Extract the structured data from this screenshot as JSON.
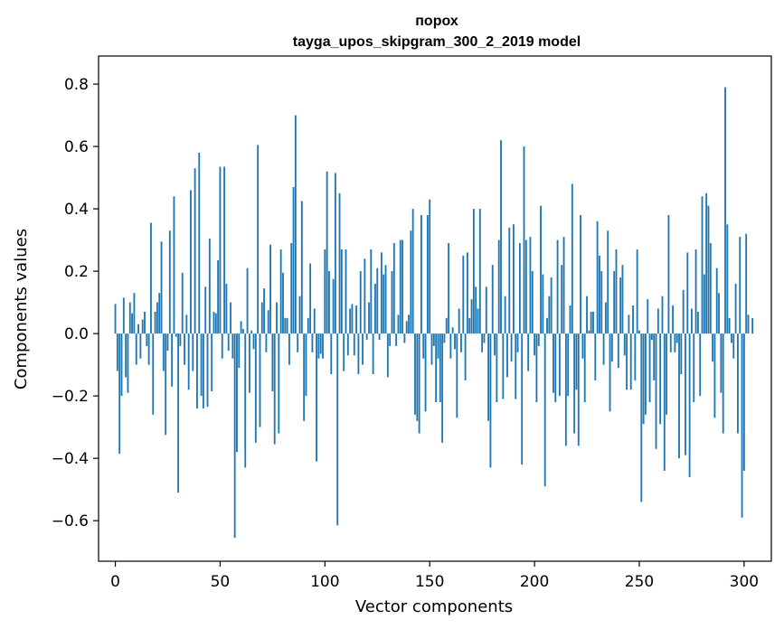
{
  "chart_data": {
    "type": "bar",
    "title": "порох",
    "subtitle": "tayga_upos_skipgram_300_2_2019 model",
    "xlabel": "Vector components",
    "ylabel": "Components values",
    "xlim": [
      -8,
      313
    ],
    "ylim": [
      -0.73,
      0.89
    ],
    "x_ticks": [
      0,
      50,
      100,
      150,
      200,
      250,
      300
    ],
    "x_tick_labels": [
      "0",
      "50",
      "100",
      "150",
      "200",
      "250",
      "300"
    ],
    "y_ticks": [
      -0.6,
      -0.4,
      -0.2,
      0.0,
      0.2,
      0.4,
      0.6,
      0.8
    ],
    "y_tick_labels": [
      "−0.6",
      "−0.4",
      "−0.2",
      "0.0",
      "0.2",
      "0.4",
      "0.6",
      "0.8"
    ],
    "bar_color": "#1f77b4",
    "series": [
      {
        "name": "components",
        "values": [
          0.095,
          -0.12,
          -0.385,
          -0.2,
          0.115,
          -0.14,
          -0.19,
          0.1,
          0.065,
          0.13,
          -0.1,
          0.03,
          -0.08,
          0.045,
          0.07,
          -0.04,
          -0.1,
          0.355,
          -0.26,
          0.07,
          0.1,
          0.13,
          0.295,
          -0.12,
          -0.325,
          -0.055,
          0.33,
          -0.17,
          0.44,
          -0.01,
          -0.51,
          -0.04,
          0.195,
          -0.1,
          0.06,
          -0.18,
          0.46,
          -0.12,
          0.53,
          -0.24,
          0.58,
          -0.2,
          -0.24,
          0.15,
          -0.235,
          0.305,
          -0.185,
          0.07,
          0.065,
          0.235,
          0.535,
          -0.08,
          0.535,
          0.16,
          -0.055,
          0.1,
          -0.08,
          -0.655,
          -0.38,
          -0.11,
          0.04,
          0.015,
          -0.43,
          0.21,
          -0.19,
          0.01,
          -0.05,
          -0.35,
          0.605,
          -0.3,
          0.1,
          0.145,
          -0.06,
          0.075,
          0.285,
          -0.185,
          -0.355,
          0.1,
          -0.32,
          0.27,
          0.195,
          0.05,
          0.05,
          -0.1,
          0.29,
          0.47,
          0.7,
          -0.06,
          0.12,
          0.425,
          -0.28,
          -0.2,
          0.05,
          0.225,
          -0.06,
          0.08,
          -0.41,
          -0.08,
          -0.065,
          -0.08,
          0.27,
          0.52,
          0.2,
          -0.13,
          0.175,
          0.515,
          -0.615,
          0.45,
          0.27,
          -0.12,
          0.27,
          -0.07,
          0.08,
          0.095,
          -0.07,
          0.09,
          -0.13,
          0.2,
          -0.1,
          0.24,
          -0.02,
          0.1,
          0.27,
          -0.13,
          0.16,
          0.21,
          -0.02,
          0.26,
          0.19,
          0.22,
          -0.14,
          -0.04,
          0.2,
          0.29,
          -0.04,
          0.06,
          0.3,
          0.3,
          -0.03,
          0.04,
          0.06,
          0.33,
          0.4,
          -0.26,
          -0.28,
          -0.32,
          0.38,
          -0.08,
          -0.25,
          0.38,
          0.43,
          -0.1,
          -0.04,
          -0.22,
          -0.08,
          -0.22,
          -0.35,
          -0.03,
          0.05,
          0.29,
          -0.08,
          0.02,
          -0.05,
          -0.27,
          0.08,
          -0.06,
          0.25,
          -0.15,
          0.26,
          0.05,
          0.11,
          0.4,
          0.15,
          0.08,
          0.4,
          -0.06,
          -0.03,
          0.15,
          -0.28,
          -0.43,
          0.22,
          -0.07,
          -0.22,
          0.3,
          0.62,
          -0.21,
          0.12,
          -0.14,
          0.34,
          -0.09,
          0.35,
          -0.21,
          -0.06,
          0.29,
          -0.42,
          0.6,
          0.3,
          -0.12,
          0.31,
          0.2,
          -0.07,
          -0.22,
          -0.04,
          0.41,
          0.19,
          -0.49,
          0.05,
          0.12,
          0.18,
          -0.19,
          -0.22,
          0.3,
          -0.2,
          0.22,
          0.31,
          -0.36,
          -0.2,
          0.09,
          0.48,
          -0.32,
          -0.18,
          -0.36,
          0.38,
          -0.08,
          -0.22,
          0.12,
          0.01,
          0.07,
          0.07,
          -0.15,
          0.36,
          0.25,
          0.2,
          -0.1,
          0.1,
          0.33,
          -0.25,
          -0.09,
          0.2,
          0.27,
          -0.11,
          0.18,
          0.22,
          -0.07,
          -0.18,
          0.06,
          -0.18,
          0.09,
          -0.15,
          0.27,
          0.01,
          -0.54,
          -0.29,
          -0.26,
          0.11,
          -0.22,
          -0.02,
          -0.15,
          -0.37,
          0.08,
          -0.29,
          0.12,
          -0.44,
          -0.26,
          0.38,
          -0.06,
          0.09,
          -0.06,
          -0.03,
          -0.4,
          -0.13,
          0.14,
          -0.39,
          0.26,
          -0.46,
          0.08,
          -0.22,
          0.27,
          0.07,
          -0.2,
          0.44,
          0.19,
          0.45,
          0.41,
          0.29,
          -0.09,
          -0.27,
          0.21,
          0.13,
          -0.19,
          -0.32,
          0.79,
          0.35,
          0.05,
          -0.03,
          -0.08,
          0.16,
          -0.32,
          0.31,
          -0.59,
          -0.44,
          0.32,
          0.06,
          0.0,
          0.05
        ]
      }
    ]
  }
}
